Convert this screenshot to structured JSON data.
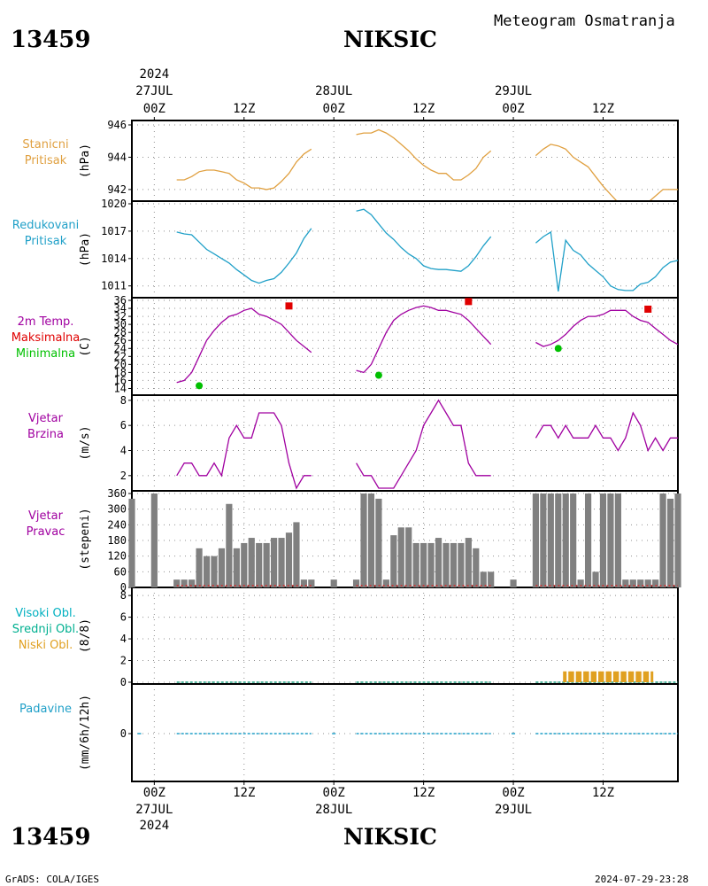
{
  "header": {
    "station_id": "13459",
    "station_name": "NIKSIC",
    "subtitle": "Meteogram Osmatranja"
  },
  "footer": {
    "station_id": "13459",
    "station_name": "NIKSIC",
    "credit": "GrADS: COLA/IGES",
    "timestamp": "2024-07-29-23:28"
  },
  "time_axis": {
    "top_labels": [
      {
        "line1": "2024",
        "line2": "27JUL",
        "line3": "00Z",
        "h": 0
      },
      {
        "line1": "",
        "line2": "",
        "line3": "12Z",
        "h": 12
      },
      {
        "line1": "",
        "line2": "28JUL",
        "line3": "00Z",
        "h": 24
      },
      {
        "line1": "",
        "line2": "",
        "line3": "12Z",
        "h": 36
      },
      {
        "line1": "",
        "line2": "29JUL",
        "line3": "00Z",
        "h": 48
      },
      {
        "line1": "",
        "line2": "",
        "line3": "12Z",
        "h": 60
      }
    ],
    "bottom_labels": [
      {
        "line1": "00Z",
        "line2": "27JUL",
        "line3": "2024",
        "h": 0
      },
      {
        "line1": "12Z",
        "line2": "",
        "line3": "",
        "h": 12
      },
      {
        "line1": "00Z",
        "line2": "28JUL",
        "line3": "",
        "h": 24
      },
      {
        "line1": "12Z",
        "line2": "",
        "line3": "",
        "h": 36
      },
      {
        "line1": "00Z",
        "line2": "29JUL",
        "line3": "",
        "h": 48
      },
      {
        "line1": "12Z",
        "line2": "",
        "line3": "",
        "h": 60
      }
    ],
    "range_hours": [
      -3,
      70
    ]
  },
  "panels": [
    {
      "id": "stanicni",
      "labels": [
        {
          "text": "Stanicni",
          "color": "#e0a040"
        },
        {
          "text": "Pritisak",
          "color": "#e0a040"
        }
      ],
      "unit": "(hPa)"
    },
    {
      "id": "redukovani",
      "labels": [
        {
          "text": "Redukovani",
          "color": "#20a0c8"
        },
        {
          "text": "Pritisak",
          "color": "#20a0c8"
        }
      ],
      "unit": "(hPa)"
    },
    {
      "id": "temp",
      "labels": [
        {
          "text": "2m Temp.",
          "color": "#a000a0"
        },
        {
          "text": "Maksimalna",
          "color": "#e00000"
        },
        {
          "text": "Minimalna",
          "color": "#00c000"
        }
      ],
      "unit": "(C)"
    },
    {
      "id": "brzina",
      "labels": [
        {
          "text": "Vjetar",
          "color": "#a000a0"
        },
        {
          "text": "Brzina",
          "color": "#a000a0"
        }
      ],
      "unit": "(m/s)"
    },
    {
      "id": "pravac",
      "labels": [
        {
          "text": "Vjetar",
          "color": "#a000a0"
        },
        {
          "text": "Pravac",
          "color": "#a000a0"
        }
      ],
      "unit": "(stepeni)"
    },
    {
      "id": "oblaci",
      "labels": [
        {
          "text": "Visoki Obl.",
          "color": "#00b0c0"
        },
        {
          "text": "Srednji Obl.",
          "color": "#00b090"
        },
        {
          "text": "Niski Obl.",
          "color": "#e0a020"
        }
      ],
      "unit": "(8/8)"
    },
    {
      "id": "padavine",
      "labels": [
        {
          "text": "Padavine",
          "color": "#20a0c8"
        }
      ],
      "unit": "(mm/6h/12h)"
    }
  ],
  "chart_data": [
    {
      "id": "stanicni",
      "type": "line",
      "ylabel": "(hPa)",
      "ylim": [
        941.5,
        946
      ],
      "yticks": [
        942,
        944,
        946
      ],
      "color": "#e0a040",
      "segments": [
        {
          "x": [
            3,
            4,
            5,
            6,
            7,
            8,
            9,
            10,
            11,
            12,
            13,
            14,
            15,
            16,
            17,
            18,
            19,
            20,
            21
          ],
          "y": [
            942.6,
            942.6,
            942.8,
            943.1,
            943.2,
            943.2,
            943.1,
            943.0,
            942.6,
            942.4,
            942.1,
            942.1,
            942.0,
            942.1,
            942.5,
            943.0,
            943.7,
            944.2,
            944.5
          ]
        },
        {
          "x": [
            27,
            28,
            29,
            30,
            31,
            32,
            33,
            34,
            35,
            36,
            37,
            38,
            39,
            40,
            41,
            42,
            43,
            44,
            45
          ],
          "y": [
            945.4,
            945.5,
            945.5,
            945.7,
            945.5,
            945.2,
            944.8,
            944.4,
            943.9,
            943.5,
            943.2,
            943.0,
            943.0,
            942.6,
            942.6,
            942.9,
            943.3,
            944.0,
            944.4
          ]
        },
        {
          "x": [
            51,
            52,
            53,
            54,
            55,
            56,
            57,
            58,
            59,
            60,
            61,
            62,
            63,
            64,
            65,
            66,
            67,
            68,
            69,
            70
          ],
          "y": [
            944.1,
            944.5,
            944.8,
            944.7,
            944.5,
            944.0,
            943.7,
            943.4,
            942.8,
            942.2,
            941.7,
            941.2,
            940.9,
            940.9,
            940.9,
            941.2,
            941.6,
            942.0,
            942.0,
            942.0
          ]
        }
      ]
    },
    {
      "id": "redukovani",
      "type": "line",
      "ylabel": "(hPa)",
      "ylim": [
        1010,
        1020
      ],
      "yticks": [
        1011,
        1014,
        1017,
        1020
      ],
      "color": "#20a0c8",
      "segments": [
        {
          "x": [
            3,
            4,
            5,
            6,
            7,
            8,
            9,
            10,
            11,
            12,
            13,
            14,
            15,
            16,
            17,
            18,
            19,
            20,
            21
          ],
          "y": [
            1016.9,
            1016.7,
            1016.6,
            1015.8,
            1015.0,
            1014.5,
            1014.0,
            1013.5,
            1012.8,
            1012.2,
            1011.6,
            1011.3,
            1011.6,
            1011.8,
            1012.5,
            1013.5,
            1014.6,
            1016.2,
            1017.3
          ]
        },
        {
          "x": [
            27,
            28,
            29,
            30,
            31,
            32,
            33,
            34,
            35,
            36,
            37,
            38,
            39,
            40,
            41,
            42,
            43,
            44,
            45
          ],
          "y": [
            1019.2,
            1019.4,
            1018.8,
            1017.8,
            1016.8,
            1016.1,
            1015.2,
            1014.5,
            1014.0,
            1013.2,
            1012.9,
            1012.8,
            1012.8,
            1012.7,
            1012.6,
            1013.2,
            1014.2,
            1015.4,
            1016.4
          ]
        },
        {
          "x": [
            51,
            52,
            53,
            54,
            55,
            56,
            57,
            58,
            59,
            60,
            61,
            62,
            63,
            64,
            65,
            66,
            67,
            68,
            69,
            70
          ],
          "y": [
            1015.7,
            1016.4,
            1016.9,
            1010.4,
            1016.0,
            1014.9,
            1014.4,
            1013.4,
            1012.7,
            1012.0,
            1011.0,
            1010.6,
            1010.5,
            1010.5,
            1011.2,
            1011.4,
            1012.0,
            1013.0,
            1013.6,
            1013.8
          ]
        }
      ]
    },
    {
      "id": "temp",
      "type": "line",
      "ylabel": "(C)",
      "ylim": [
        13,
        36
      ],
      "yticks": [
        14,
        16,
        18,
        20,
        22,
        24,
        26,
        28,
        30,
        32,
        34,
        36
      ],
      "color": "#a000a0",
      "segments": [
        {
          "x": [
            3,
            4,
            5,
            6,
            7,
            8,
            9,
            10,
            11,
            12,
            13,
            14,
            15,
            16,
            17,
            18,
            19,
            20,
            21
          ],
          "y": [
            15.5,
            16,
            18,
            22,
            26,
            28.5,
            30.5,
            32,
            32.5,
            33.5,
            34,
            32.5,
            32,
            31,
            30,
            28,
            26,
            24.5,
            23
          ]
        },
        {
          "x": [
            27,
            28,
            29,
            30,
            31,
            32,
            33,
            34,
            35,
            36,
            37,
            38,
            39,
            40,
            41,
            42,
            43,
            44,
            45
          ],
          "y": [
            18.5,
            18,
            20,
            24,
            28,
            31,
            32.5,
            33.5,
            34.2,
            34.6,
            34.2,
            33.5,
            33.5,
            33,
            32.5,
            31,
            29,
            27,
            25
          ]
        },
        {
          "x": [
            51,
            52,
            53,
            54,
            55,
            56,
            57,
            58,
            59,
            60,
            61,
            62,
            63,
            64,
            65,
            66,
            67,
            68,
            69,
            70
          ],
          "y": [
            25.5,
            24.5,
            25,
            26,
            27.5,
            29.5,
            31,
            32,
            32,
            32.5,
            33.5,
            33.5,
            33.5,
            32,
            31,
            30.5,
            29,
            27.5,
            26,
            25
          ]
        }
      ],
      "max_points": {
        "x": [
          18,
          42,
          66
        ],
        "y": [
          34.6,
          35.7,
          33.8
        ],
        "color": "#e00000"
      },
      "min_points": {
        "x": [
          6,
          30,
          54
        ],
        "y": [
          14.7,
          17.3,
          24.0
        ],
        "color": "#00c000"
      }
    },
    {
      "id": "brzina",
      "type": "line",
      "ylabel": "(m/s)",
      "ylim": [
        1,
        8.2
      ],
      "yticks": [
        2,
        4,
        6,
        8
      ],
      "color": "#a000a0",
      "segments": [
        {
          "x": [
            3,
            4,
            5,
            6,
            7,
            8,
            9,
            10,
            11,
            12,
            13,
            14,
            15,
            16,
            17,
            18,
            19,
            20,
            21
          ],
          "y": [
            2,
            3,
            3,
            2,
            2,
            3,
            2,
            5,
            6,
            5,
            5,
            7,
            7,
            7,
            6,
            3,
            1,
            2,
            2
          ]
        },
        {
          "x": [
            27,
            28,
            29,
            30,
            31,
            32,
            33,
            34,
            35,
            36,
            37,
            38,
            39,
            40,
            41,
            42,
            43,
            44,
            45
          ],
          "y": [
            3,
            2,
            2,
            1,
            1,
            1,
            2,
            3,
            4,
            6,
            7,
            8,
            7,
            6,
            6,
            3,
            2,
            2,
            2
          ]
        },
        {
          "x": [
            51,
            52,
            53,
            54,
            55,
            56,
            57,
            58,
            59,
            60,
            61,
            62,
            63,
            64,
            65,
            66,
            67,
            68,
            69,
            70
          ],
          "y": [
            5,
            6,
            6,
            5,
            6,
            5,
            5,
            5,
            6,
            5,
            5,
            4,
            5,
            7,
            6,
            4,
            5,
            4,
            5,
            5
          ]
        }
      ]
    },
    {
      "id": "pravac",
      "type": "bar",
      "ylabel": "(stepeni)",
      "ylim": [
        0,
        360
      ],
      "yticks": [
        0,
        60,
        120,
        180,
        240,
        300,
        360
      ],
      "color": "#808080",
      "calm_color": "#c04040",
      "x": [
        -3,
        0,
        3,
        4,
        5,
        6,
        7,
        8,
        9,
        10,
        11,
        12,
        13,
        14,
        15,
        16,
        17,
        18,
        19,
        20,
        21,
        24,
        27,
        28,
        29,
        30,
        31,
        32,
        33,
        34,
        35,
        36,
        37,
        38,
        39,
        40,
        41,
        42,
        43,
        44,
        45,
        48,
        51,
        52,
        53,
        54,
        55,
        56,
        57,
        58,
        59,
        60,
        61,
        62,
        63,
        64,
        65,
        66,
        67,
        68,
        69,
        70
      ],
      "values": [
        340,
        360,
        30,
        30,
        30,
        150,
        120,
        120,
        150,
        320,
        150,
        170,
        190,
        170,
        170,
        190,
        190,
        210,
        250,
        30,
        30,
        30,
        30,
        360,
        360,
        340,
        30,
        200,
        230,
        230,
        170,
        170,
        170,
        190,
        170,
        170,
        170,
        190,
        150,
        60,
        60,
        30,
        360,
        360,
        360,
        360,
        360,
        360,
        30,
        360,
        60,
        360,
        360,
        360,
        30,
        30,
        30,
        30,
        30,
        360,
        340,
        360
      ]
    },
    {
      "id": "oblaci",
      "type": "bar",
      "ylabel": "(8/8)",
      "ylim": [
        0,
        8.5
      ],
      "yticks": [
        0,
        2,
        4,
        6,
        8
      ],
      "series": [
        {
          "name": "Niski Obl.",
          "color": "#e0a020",
          "x": [
            55,
            56,
            57,
            58,
            59,
            60,
            61,
            62,
            63,
            64,
            65,
            66
          ],
          "values": [
            1,
            1,
            1,
            1,
            1,
            1,
            1,
            1,
            1,
            1,
            1,
            1
          ]
        }
      ]
    },
    {
      "id": "padavine",
      "type": "bar",
      "ylabel": "(mm/6h/12h)",
      "ylim": [
        -1,
        1
      ],
      "yticks": [
        0
      ],
      "series": [
        {
          "name": "Padavine",
          "color": "#20a0c8",
          "x": [],
          "values": []
        }
      ]
    }
  ]
}
